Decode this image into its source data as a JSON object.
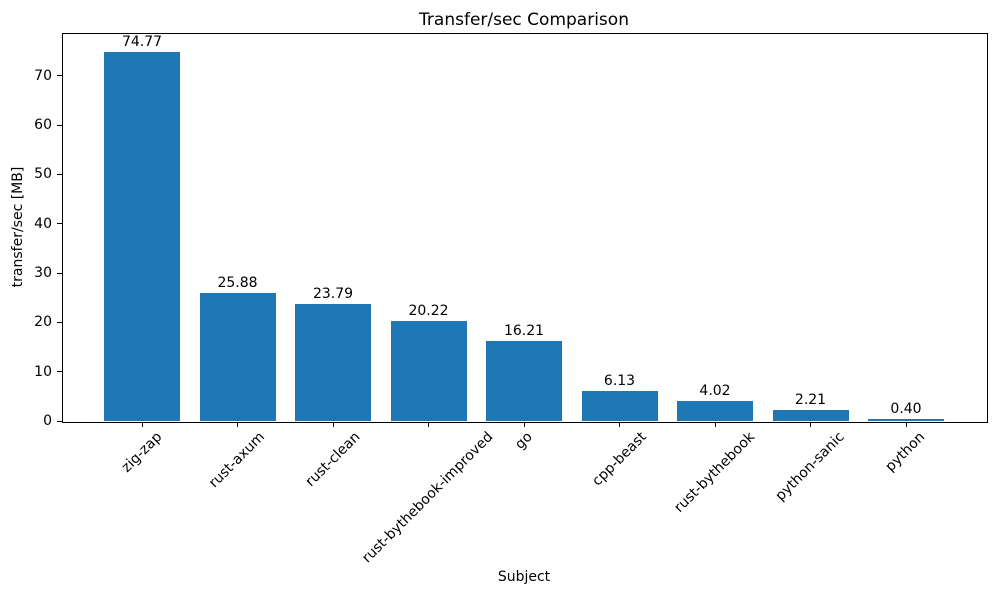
{
  "chart_data": {
    "type": "bar",
    "title": "Transfer/sec Comparison",
    "xlabel": "Subject",
    "ylabel": "transfer/sec [MB]",
    "categories": [
      "zig-zap",
      "rust-axum",
      "rust-clean",
      "rust-bythebook-improved",
      "go",
      "cpp-beast",
      "rust-bythebook",
      "python-sanic",
      "python"
    ],
    "values": [
      74.77,
      25.88,
      23.79,
      20.22,
      16.21,
      6.13,
      4.02,
      2.21,
      0.4
    ],
    "value_labels": [
      "74.77",
      "25.88",
      "23.79",
      "20.22",
      "16.21",
      "6.13",
      "4.02",
      "2.21",
      "0.40"
    ],
    "bar_color": "#1f77b4",
    "text_color": "#000000",
    "spine_color": "#000000",
    "ylim": [
      0,
      78.7
    ],
    "yticks": [
      0,
      10,
      20,
      30,
      40,
      50,
      60,
      70
    ],
    "xtick_rotation_deg": 45,
    "grid": false,
    "legend": false
  }
}
